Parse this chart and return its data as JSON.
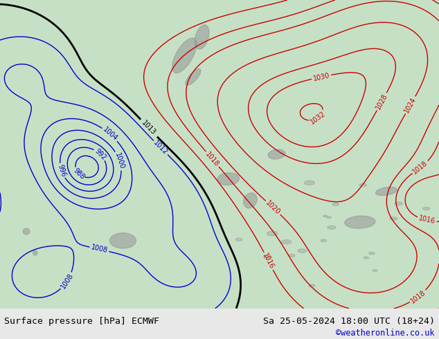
{
  "title_left": "Surface pressure [hPa] ECMWF",
  "title_right": "Sa 25-05-2024 18:00 UTC (18+24)",
  "credit": "©weatheronline.co.uk",
  "fig_width": 6.34,
  "fig_height": 4.9,
  "dpi": 100,
  "footer_bg": "#e8e8e8",
  "map_bg": "#c8e0c0",
  "label_color": "#000000",
  "credit_color": "#0000cc",
  "blue_color": "#0000cc",
  "red_color": "#cc0000",
  "black_color": "#000000"
}
